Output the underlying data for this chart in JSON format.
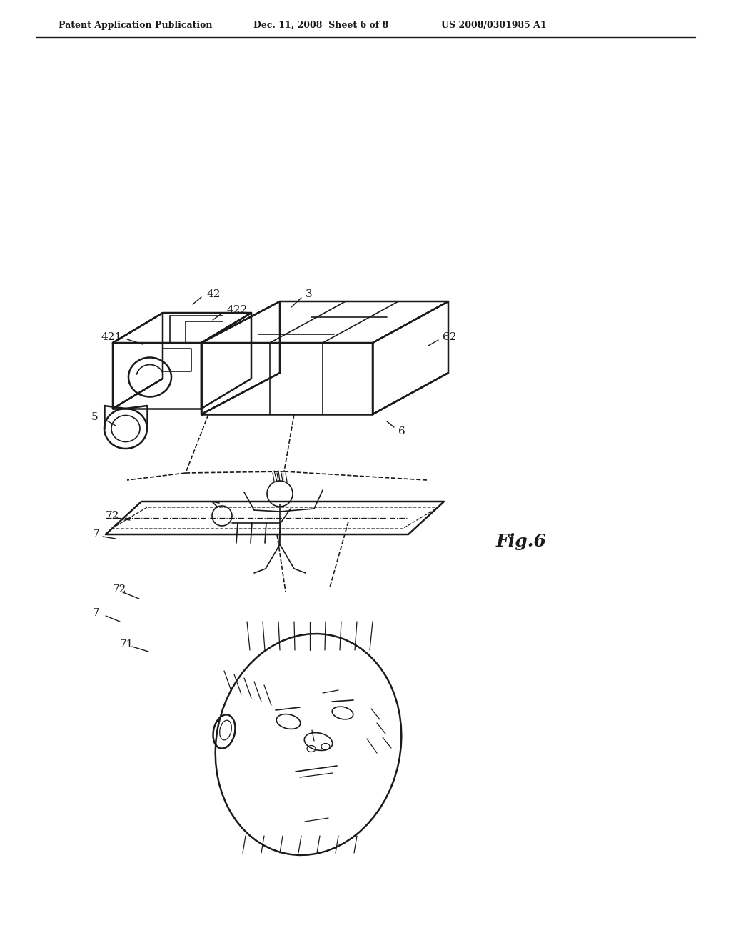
{
  "title_left": "Patent Application Publication",
  "title_middle": "Dec. 11, 2008  Sheet 6 of 8",
  "title_right": "US 2008/0301985 A1",
  "fig_label": "Fig.6",
  "background_color": "#ffffff",
  "line_color": "#1a1a1a",
  "header_fontsize": 9,
  "label_fontsize": 11,
  "fig6_fontsize": 18
}
